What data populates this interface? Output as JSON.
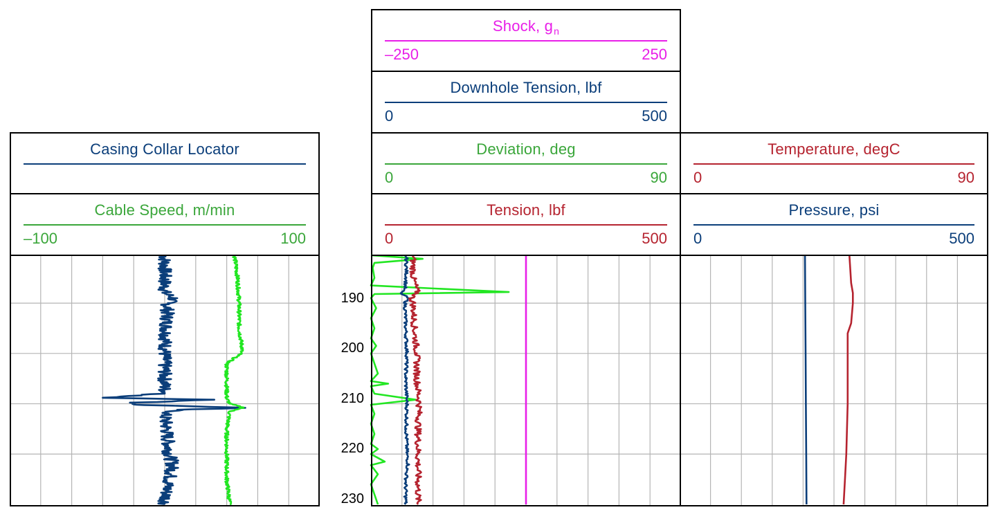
{
  "colors": {
    "navy": "#0b3e7a",
    "green": "#3aa63a",
    "bright_green": "#22e622",
    "red": "#b5232f",
    "magenta": "#e81ee8",
    "grid": "#b4b4b4"
  },
  "tracks": {
    "left": {
      "headers": [
        {
          "title": "Casing Collar Locator",
          "sub": "",
          "min": "",
          "max": "",
          "color": "#0b3e7a"
        },
        {
          "title": "Cable Speed, m/min",
          "sub": "",
          "min": "–100",
          "max": "100",
          "color": "#3aa63a"
        }
      ]
    },
    "middle": {
      "headers": [
        {
          "title": "Shock, g",
          "sub": "n",
          "min": "–250",
          "max": "250",
          "color": "#e81ee8"
        },
        {
          "title": "Downhole Tension, lbf",
          "sub": "",
          "min": "0",
          "max": "500",
          "color": "#0b3e7a"
        },
        {
          "title": "Deviation, deg",
          "sub": "",
          "min": "0",
          "max": "90",
          "color": "#3aa63a"
        },
        {
          "title": "Tension, lbf",
          "sub": "",
          "min": "0",
          "max": "500",
          "color": "#b5232f"
        }
      ]
    },
    "right": {
      "headers": [
        {
          "title": "Temperature, degC",
          "sub": "",
          "min": "0",
          "max": "90",
          "color": "#b5232f"
        },
        {
          "title": "Pressure, psi",
          "sub": "",
          "min": "0",
          "max": "500",
          "color": "#0b3e7a"
        }
      ]
    }
  },
  "depth_labels": [
    "190",
    "200",
    "210",
    "220",
    "230"
  ],
  "chart_data": {
    "type": "line",
    "depth_range": [
      180.5,
      230
    ],
    "depth_ticks": [
      190,
      200,
      210,
      220,
      230
    ],
    "series": [
      {
        "name": "Casing Collar Locator",
        "track": "left",
        "scale": [
          -100,
          100
        ],
        "color": "#0b3e7a",
        "noise": 4.5,
        "points": [
          [
            180.5,
            0
          ],
          [
            188,
            0
          ],
          [
            189,
            6
          ],
          [
            190,
            2
          ],
          [
            200,
            0
          ],
          [
            208,
            0
          ],
          [
            208.8,
            -40
          ],
          [
            209.2,
            32
          ],
          [
            209.8,
            -20
          ],
          [
            210.2,
            -18
          ],
          [
            210.8,
            52
          ],
          [
            211.2,
            8
          ],
          [
            212,
            0
          ],
          [
            220,
            3
          ],
          [
            222,
            5
          ],
          [
            224,
            4
          ],
          [
            226,
            2
          ],
          [
            230,
            0
          ]
        ]
      },
      {
        "name": "Cable Speed, m/min",
        "track": "left",
        "scale": [
          -100,
          100
        ],
        "color": "#22e622",
        "noise": 1.2,
        "points": [
          [
            180.5,
            45
          ],
          [
            185,
            47
          ],
          [
            190,
            48
          ],
          [
            195,
            48
          ],
          [
            199,
            50
          ],
          [
            200,
            49
          ],
          [
            202,
            40
          ],
          [
            205,
            40
          ],
          [
            209,
            40
          ],
          [
            210,
            42
          ],
          [
            210.8,
            51
          ],
          [
            211.5,
            42
          ],
          [
            215,
            40
          ],
          [
            220,
            40
          ],
          [
            225,
            40
          ],
          [
            230,
            42
          ]
        ]
      },
      {
        "name": "Deviation, deg",
        "track": "middle",
        "scale": [
          0,
          90
        ],
        "color": "#22e622",
        "points": [
          [
            180.5,
            0
          ],
          [
            181.2,
            15
          ],
          [
            182.0,
            1
          ],
          [
            183,
            0.5
          ],
          [
            185,
            1
          ],
          [
            186.5,
            0
          ],
          [
            187.8,
            40
          ],
          [
            188.2,
            1
          ],
          [
            189,
            0
          ],
          [
            191,
            1.5
          ],
          [
            193,
            0
          ],
          [
            195,
            1
          ],
          [
            197,
            0
          ],
          [
            198.5,
            1.5
          ],
          [
            200,
            0
          ],
          [
            202,
            1
          ],
          [
            204,
            2
          ],
          [
            205.5,
            0
          ],
          [
            206,
            5
          ],
          [
            206.5,
            0
          ],
          [
            208,
            1
          ],
          [
            209.2,
            13
          ],
          [
            210.2,
            0
          ],
          [
            212,
            1
          ],
          [
            214,
            0
          ],
          [
            216,
            1
          ],
          [
            218,
            0
          ],
          [
            219,
            2
          ],
          [
            220,
            0
          ],
          [
            221.5,
            4
          ],
          [
            222.2,
            0
          ],
          [
            224,
            2
          ],
          [
            226,
            0
          ],
          [
            228,
            1
          ],
          [
            230,
            2
          ]
        ]
      },
      {
        "name": "Downhole Tension, lbf",
        "track": "middle",
        "scale": [
          0,
          500
        ],
        "color": "#0b3e7a",
        "noise": 2.5,
        "points": [
          [
            180.5,
            57
          ],
          [
            185,
            57
          ],
          [
            187,
            55
          ],
          [
            188,
            48
          ],
          [
            189,
            60
          ],
          [
            190,
            55
          ],
          [
            195,
            56
          ],
          [
            200,
            58
          ],
          [
            205,
            56
          ],
          [
            210,
            58
          ],
          [
            215,
            57
          ],
          [
            220,
            58
          ],
          [
            222,
            60
          ],
          [
            223,
            58
          ],
          [
            226,
            56
          ],
          [
            230,
            56
          ]
        ]
      },
      {
        "name": "Tension, lbf",
        "track": "middle",
        "scale": [
          0,
          500
        ],
        "color": "#b5232f",
        "noise": 5,
        "points": [
          [
            180.5,
            68
          ],
          [
            185,
            68
          ],
          [
            188,
            75
          ],
          [
            189,
            65
          ],
          [
            190,
            68
          ],
          [
            195,
            70
          ],
          [
            200,
            74
          ],
          [
            205,
            74
          ],
          [
            210,
            78
          ],
          [
            215,
            76
          ],
          [
            220,
            76
          ],
          [
            225,
            76
          ],
          [
            230,
            76
          ]
        ]
      },
      {
        "name": "Shock, g",
        "track": "middle",
        "scale": [
          -250,
          250
        ],
        "color": "#e81ee8",
        "points": [
          [
            180.5,
            0
          ],
          [
            230,
            0
          ]
        ]
      },
      {
        "name": "Temperature, degC",
        "track": "right",
        "scale": [
          0,
          90
        ],
        "color": "#b5232f",
        "points": [
          [
            180.5,
            49.5
          ],
          [
            186,
            50
          ],
          [
            188,
            50.5
          ],
          [
            190,
            50.5
          ],
          [
            194,
            50
          ],
          [
            196,
            49
          ],
          [
            200,
            49
          ],
          [
            205,
            49
          ],
          [
            210,
            49
          ],
          [
            215,
            48.8
          ],
          [
            220,
            48.6
          ],
          [
            225,
            48.2
          ],
          [
            230,
            47.8
          ]
        ]
      },
      {
        "name": "Pressure, psi",
        "track": "right",
        "scale": [
          0,
          500
        ],
        "color": "#0b3e7a",
        "points": [
          [
            180.5,
            203
          ],
          [
            190,
            203.5
          ],
          [
            200,
            204
          ],
          [
            210,
            204.5
          ],
          [
            220,
            205
          ],
          [
            230,
            205.5
          ]
        ]
      }
    ]
  }
}
